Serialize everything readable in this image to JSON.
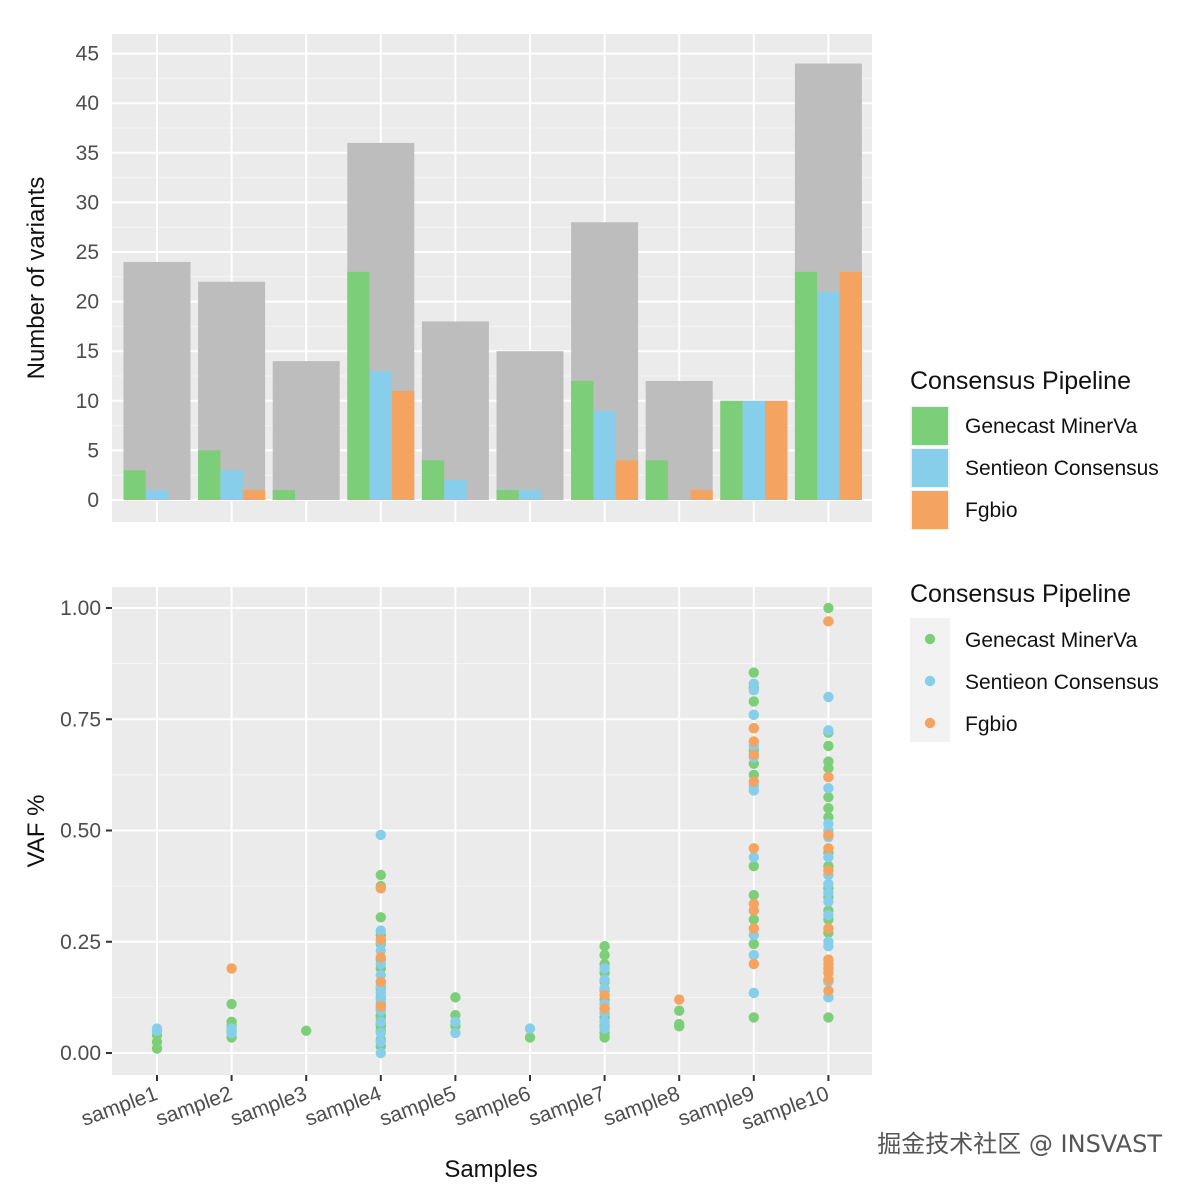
{
  "watermark": "掘金技术社区 @ INSVAST",
  "colors": {
    "panel_bg": "#ebebeb",
    "grid_major": "#ffffff",
    "total_bar": "#bdbdbd",
    "legend_key_bg": "#f2f2f2"
  },
  "chart_data": [
    {
      "type": "bar",
      "ylabel": "Number of variants",
      "ylim": [
        0,
        47
      ],
      "yticks": [
        "0",
        "5",
        "10",
        "15",
        "20",
        "25",
        "30",
        "35",
        "40",
        "45"
      ],
      "categories": [
        "sample1",
        "sample2",
        "sample3",
        "sample4",
        "sample5",
        "sample6",
        "sample7",
        "sample8",
        "sample9",
        "sample10"
      ],
      "totals": [
        24,
        22,
        14,
        36,
        18,
        15,
        28,
        12,
        10,
        44
      ],
      "series": [
        {
          "name": "Genecast MinerVa",
          "color": "#7ccf78",
          "values": [
            3,
            5,
            1,
            23,
            4,
            1,
            12,
            4,
            10,
            23
          ]
        },
        {
          "name": "Sentieon Consensus",
          "color": "#87ceeb",
          "values": [
            1,
            3,
            0,
            13,
            2,
            1,
            9,
            0,
            10,
            21
          ]
        },
        {
          "name": "Fgbio",
          "color": "#f4a460",
          "values": [
            0,
            1,
            0,
            11,
            0,
            0,
            4,
            1,
            10,
            23
          ]
        }
      ],
      "legend": {
        "title": "Consensus Pipeline",
        "position": "right"
      },
      "grid": true
    },
    {
      "type": "scatter",
      "xlabel": "Samples",
      "ylabel": "VAF %",
      "ylim": [
        -0.05,
        1.02
      ],
      "yticks": [
        "0.00",
        "0.25",
        "0.50",
        "0.75",
        "1.00"
      ],
      "categories": [
        "sample1",
        "sample2",
        "sample3",
        "sample4",
        "sample5",
        "sample6",
        "sample7",
        "sample8",
        "sample9",
        "sample10"
      ],
      "series": [
        {
          "name": "Genecast MinerVa",
          "color": "#7ccf78",
          "points": [
            [
              "sample1",
              0.01
            ],
            [
              "sample1",
              0.025
            ],
            [
              "sample1",
              0.04
            ],
            [
              "sample2",
              0.035
            ],
            [
              "sample2",
              0.07
            ],
            [
              "sample2",
              0.11
            ],
            [
              "sample2",
              0.05
            ],
            [
              "sample2",
              0.06
            ],
            [
              "sample3",
              0.05
            ],
            [
              "sample4",
              0.4
            ],
            [
              "sample4",
              0.375
            ],
            [
              "sample4",
              0.305
            ],
            [
              "sample4",
              0.265
            ],
            [
              "sample4",
              0.245
            ],
            [
              "sample4",
              0.21
            ],
            [
              "sample4",
              0.19
            ],
            [
              "sample4",
              0.16
            ],
            [
              "sample4",
              0.145
            ],
            [
              "sample4",
              0.125
            ],
            [
              "sample4",
              0.1
            ],
            [
              "sample4",
              0.085
            ],
            [
              "sample4",
              0.065
            ],
            [
              "sample4",
              0.05
            ],
            [
              "sample4",
              0.03
            ],
            [
              "sample4",
              0.015
            ],
            [
              "sample4",
              0.11
            ],
            [
              "sample4",
              0.08
            ],
            [
              "sample4",
              0.06
            ],
            [
              "sample5",
              0.125
            ],
            [
              "sample5",
              0.085
            ],
            [
              "sample5",
              0.06
            ],
            [
              "sample6",
              0.035
            ],
            [
              "sample7",
              0.24
            ],
            [
              "sample7",
              0.22
            ],
            [
              "sample7",
              0.2
            ],
            [
              "sample7",
              0.18
            ],
            [
              "sample7",
              0.16
            ],
            [
              "sample7",
              0.14
            ],
            [
              "sample7",
              0.12
            ],
            [
              "sample7",
              0.1
            ],
            [
              "sample7",
              0.08
            ],
            [
              "sample7",
              0.06
            ],
            [
              "sample7",
              0.045
            ],
            [
              "sample7",
              0.035
            ],
            [
              "sample8",
              0.095
            ],
            [
              "sample8",
              0.065
            ],
            [
              "sample8",
              0.06
            ],
            [
              "sample9",
              0.855
            ],
            [
              "sample9",
              0.82
            ],
            [
              "sample9",
              0.79
            ],
            [
              "sample9",
              0.76
            ],
            [
              "sample9",
              0.73
            ],
            [
              "sample9",
              0.68
            ],
            [
              "sample9",
              0.65
            ],
            [
              "sample9",
              0.625
            ],
            [
              "sample9",
              0.42
            ],
            [
              "sample9",
              0.355
            ],
            [
              "sample9",
              0.3
            ],
            [
              "sample9",
              0.245
            ],
            [
              "sample9",
              0.08
            ],
            [
              "sample10",
              1.0
            ],
            [
              "sample10",
              0.72
            ],
            [
              "sample10",
              0.69
            ],
            [
              "sample10",
              0.655
            ],
            [
              "sample10",
              0.64
            ],
            [
              "sample10",
              0.575
            ],
            [
              "sample10",
              0.55
            ],
            [
              "sample10",
              0.53
            ],
            [
              "sample10",
              0.45
            ],
            [
              "sample10",
              0.42
            ],
            [
              "sample10",
              0.37
            ],
            [
              "sample10",
              0.35
            ],
            [
              "sample10",
              0.32
            ],
            [
              "sample10",
              0.3
            ],
            [
              "sample10",
              0.27
            ],
            [
              "sample10",
              0.08
            ]
          ]
        },
        {
          "name": "Sentieon Consensus",
          "color": "#87ceeb",
          "points": [
            [
              "sample1",
              0.05
            ],
            [
              "sample1",
              0.055
            ],
            [
              "sample2",
              0.055
            ],
            [
              "sample2",
              0.045
            ],
            [
              "sample4",
              0.49
            ],
            [
              "sample4",
              0.275
            ],
            [
              "sample4",
              0.25
            ],
            [
              "sample4",
              0.23
            ],
            [
              "sample4",
              0.2
            ],
            [
              "sample4",
              0.175
            ],
            [
              "sample4",
              0.15
            ],
            [
              "sample4",
              0.135
            ],
            [
              "sample4",
              0.12
            ],
            [
              "sample4",
              0.095
            ],
            [
              "sample4",
              0.07
            ],
            [
              "sample4",
              0.045
            ],
            [
              "sample4",
              0.025
            ],
            [
              "sample4",
              0.0
            ],
            [
              "sample5",
              0.07
            ],
            [
              "sample5",
              0.045
            ],
            [
              "sample6",
              0.055
            ],
            [
              "sample7",
              0.19
            ],
            [
              "sample7",
              0.165
            ],
            [
              "sample7",
              0.145
            ],
            [
              "sample7",
              0.11
            ],
            [
              "sample7",
              0.09
            ],
            [
              "sample7",
              0.07
            ],
            [
              "sample7",
              0.055
            ],
            [
              "sample9",
              0.83
            ],
            [
              "sample9",
              0.815
            ],
            [
              "sample9",
              0.76
            ],
            [
              "sample9",
              0.69
            ],
            [
              "sample9",
              0.665
            ],
            [
              "sample9",
              0.6
            ],
            [
              "sample9",
              0.59
            ],
            [
              "sample9",
              0.44
            ],
            [
              "sample9",
              0.265
            ],
            [
              "sample9",
              0.22
            ],
            [
              "sample9",
              0.135
            ],
            [
              "sample10",
              0.8
            ],
            [
              "sample10",
              0.725
            ],
            [
              "sample10",
              0.62
            ],
            [
              "sample10",
              0.595
            ],
            [
              "sample10",
              0.515
            ],
            [
              "sample10",
              0.5
            ],
            [
              "sample10",
              0.485
            ],
            [
              "sample10",
              0.44
            ],
            [
              "sample10",
              0.4
            ],
            [
              "sample10",
              0.38
            ],
            [
              "sample10",
              0.36
            ],
            [
              "sample10",
              0.34
            ],
            [
              "sample10",
              0.31
            ],
            [
              "sample10",
              0.25
            ],
            [
              "sample10",
              0.24
            ],
            [
              "sample10",
              0.16
            ],
            [
              "sample10",
              0.125
            ]
          ]
        },
        {
          "name": "Fgbio",
          "color": "#f4a460",
          "points": [
            [
              "sample2",
              0.19
            ],
            [
              "sample4",
              0.37
            ],
            [
              "sample4",
              0.255
            ],
            [
              "sample4",
              0.215
            ],
            [
              "sample4",
              0.16
            ],
            [
              "sample4",
              0.105
            ],
            [
              "sample7",
              0.13
            ],
            [
              "sample7",
              0.1
            ],
            [
              "sample8",
              0.12
            ],
            [
              "sample9",
              0.73
            ],
            [
              "sample9",
              0.7
            ],
            [
              "sample9",
              0.67
            ],
            [
              "sample9",
              0.61
            ],
            [
              "sample9",
              0.46
            ],
            [
              "sample9",
              0.335
            ],
            [
              "sample9",
              0.32
            ],
            [
              "sample9",
              0.28
            ],
            [
              "sample9",
              0.2
            ],
            [
              "sample10",
              0.97
            ],
            [
              "sample10",
              0.62
            ],
            [
              "sample10",
              0.49
            ],
            [
              "sample10",
              0.46
            ],
            [
              "sample10",
              0.41
            ],
            [
              "sample10",
              0.28
            ],
            [
              "sample10",
              0.21
            ],
            [
              "sample10",
              0.2
            ],
            [
              "sample10",
              0.19
            ],
            [
              "sample10",
              0.18
            ],
            [
              "sample10",
              0.165
            ],
            [
              "sample10",
              0.14
            ]
          ]
        }
      ],
      "legend": {
        "title": "Consensus Pipeline",
        "position": "right"
      },
      "grid": true
    }
  ]
}
